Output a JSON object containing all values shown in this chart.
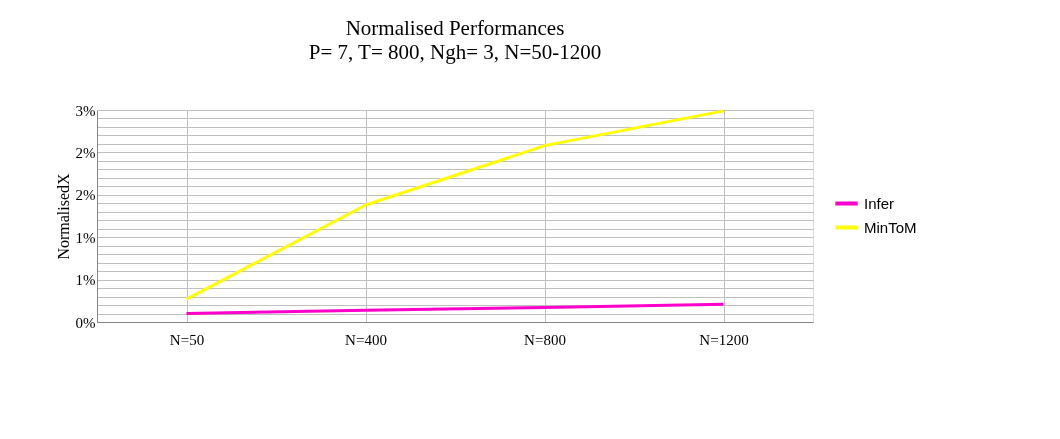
{
  "chart_data": {
    "type": "line",
    "title": "Normalised Performances",
    "subtitle": "P= 7, T= 800, Ngh= 3, N=50-1200",
    "ylabel": "NormalisedX",
    "categories": [
      "N=50",
      "N=400",
      "N=800",
      "N=1200"
    ],
    "series": [
      {
        "name": "Infer",
        "color": "#ff00cc",
        "values": [
          0.1,
          0.14,
          0.17,
          0.21
        ]
      },
      {
        "name": "MinToM",
        "color": "#ffff00",
        "values": [
          0.27,
          1.38,
          2.08,
          2.49
        ]
      }
    ],
    "ylim": [
      0,
      2.5
    ],
    "yticks": [
      {
        "value": 0,
        "label": "0%"
      },
      {
        "value": 0.1,
        "label": null
      },
      {
        "value": 0.2,
        "label": null
      },
      {
        "value": 0.3,
        "label": null
      },
      {
        "value": 0.4,
        "label": null
      },
      {
        "value": 0.5,
        "label": "1%"
      },
      {
        "value": 0.6,
        "label": null
      },
      {
        "value": 0.7,
        "label": null
      },
      {
        "value": 0.8,
        "label": null
      },
      {
        "value": 0.9,
        "label": null
      },
      {
        "value": 1.0,
        "label": "1%"
      },
      {
        "value": 1.1,
        "label": null
      },
      {
        "value": 1.2,
        "label": null
      },
      {
        "value": 1.3,
        "label": null
      },
      {
        "value": 1.4,
        "label": null
      },
      {
        "value": 1.5,
        "label": "2%"
      },
      {
        "value": 1.6,
        "label": null
      },
      {
        "value": 1.7,
        "label": null
      },
      {
        "value": 1.8,
        "label": null
      },
      {
        "value": 1.9,
        "label": null
      },
      {
        "value": 2.0,
        "label": "2%"
      },
      {
        "value": 2.1,
        "label": null
      },
      {
        "value": 2.2,
        "label": null
      },
      {
        "value": 2.3,
        "label": null
      },
      {
        "value": 2.4,
        "label": null
      },
      {
        "value": 2.5,
        "label": "3%"
      }
    ],
    "grid": true,
    "legend": "right",
    "marker": "none",
    "line_style": "solid"
  }
}
